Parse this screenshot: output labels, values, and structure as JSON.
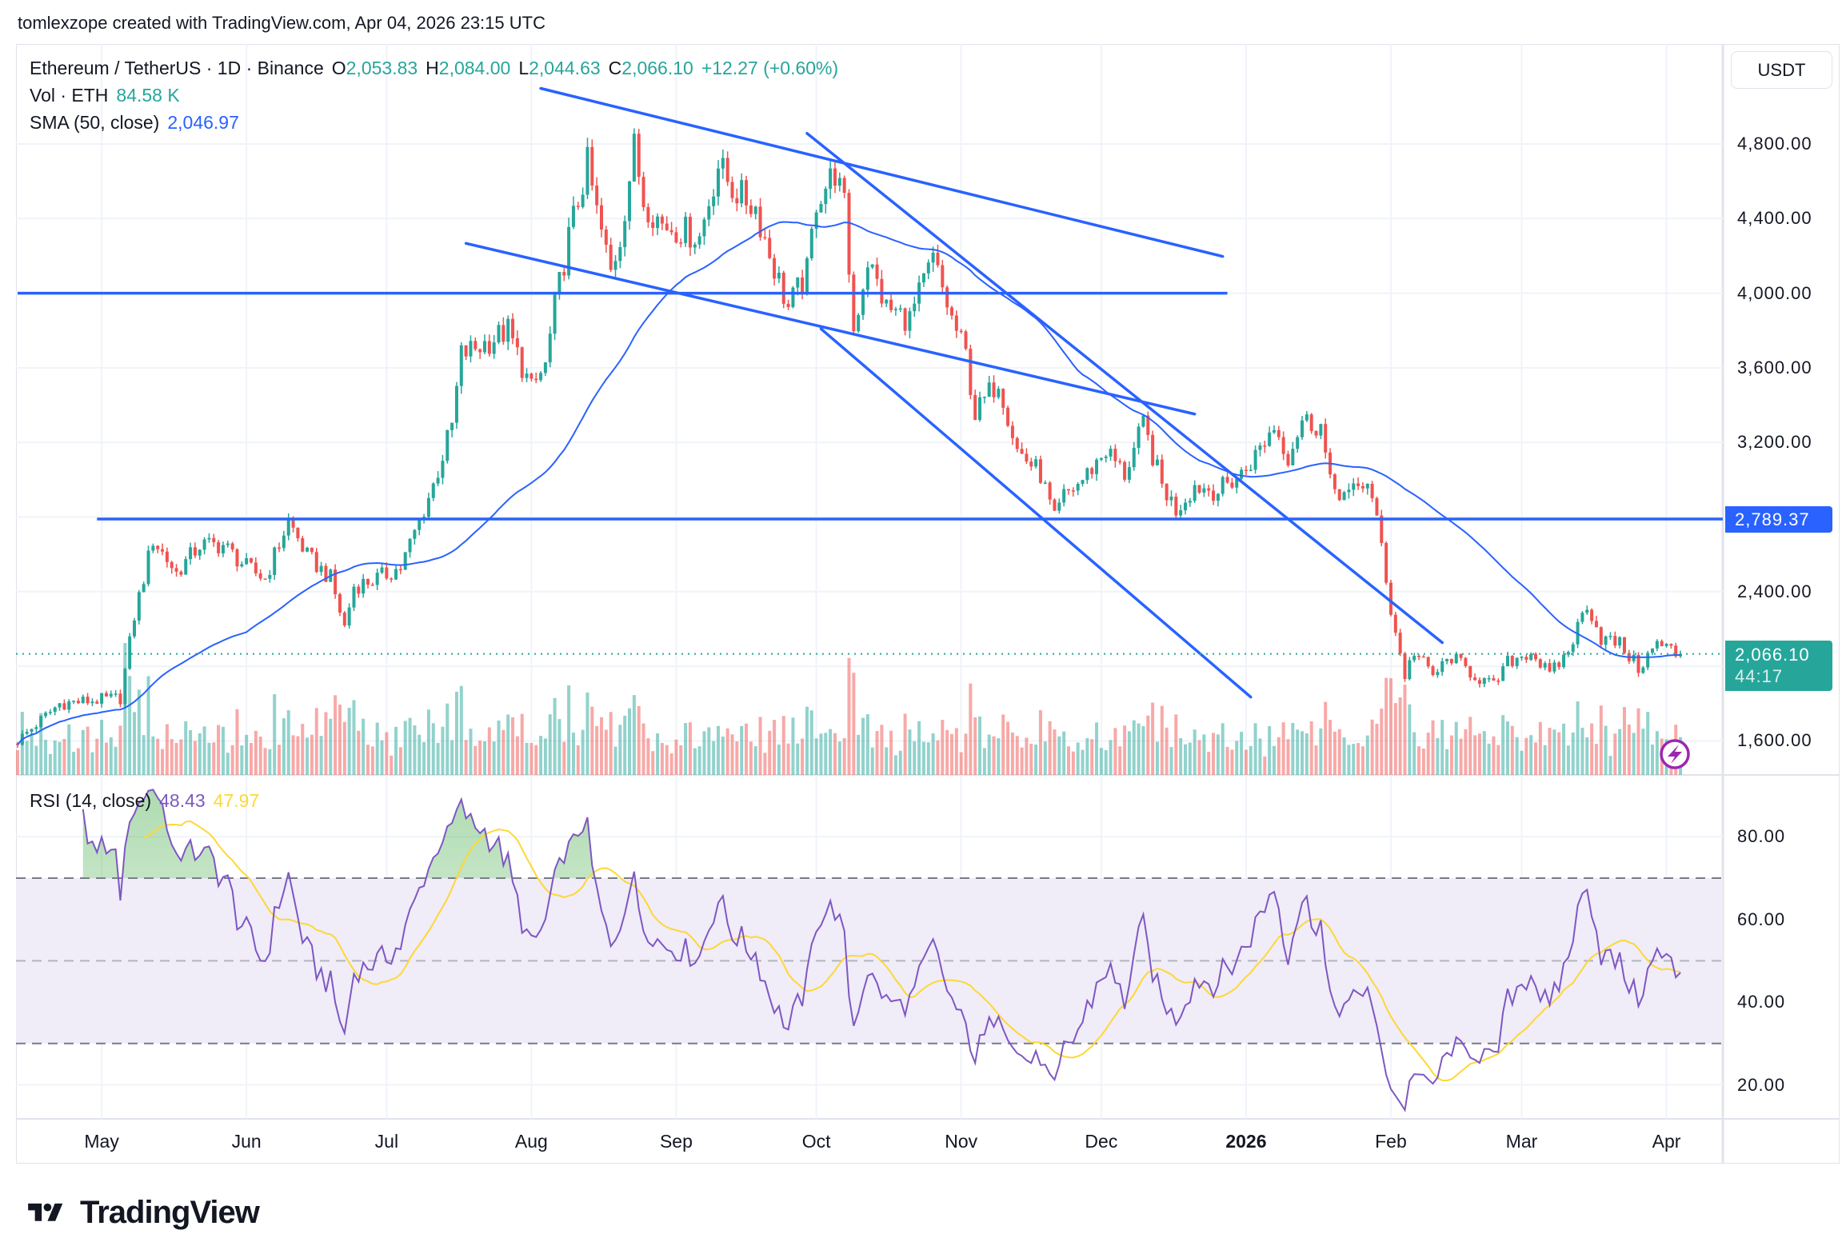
{
  "credit": "tomlexzope created with TradingView.com, Apr 04, 2026 23:15 UTC",
  "legend": {
    "symbol": "Ethereum / TetherUS · 1D · Binance",
    "o_label": "O",
    "o": "2,053.83",
    "h_label": "H",
    "h": "2,084.00",
    "l_label": "L",
    "l": "2,044.63",
    "c_label": "C",
    "c": "2,066.10",
    "change": "+12.27 (+0.60%)",
    "vol_label": "Vol · ETH",
    "vol": "84.58 K",
    "sma_label": "SMA (50, close)",
    "sma": "2,046.97",
    "rsi_label": "RSI (14, close)",
    "rsi": "48.43",
    "rsi_ma": "47.97"
  },
  "price_axis": {
    "currency": "USDT",
    "ticks": [
      "4,800.00",
      "4,400.00",
      "4,000.00",
      "3,600.00",
      "3,200.00",
      "2,400.00",
      "1,600.00"
    ],
    "hline_label": "2,789.37",
    "last_price": "2,066.10",
    "countdown": "44:17"
  },
  "rsi_axis": {
    "ticks": [
      "80.00",
      "60.00",
      "40.00",
      "20.00"
    ]
  },
  "time_axis": {
    "labels": [
      {
        "text": "May",
        "date": "2025-05-01",
        "bold": false
      },
      {
        "text": "Jun",
        "date": "2025-06-01",
        "bold": false
      },
      {
        "text": "Jul",
        "date": "2025-07-01",
        "bold": false
      },
      {
        "text": "Aug",
        "date": "2025-08-01",
        "bold": false
      },
      {
        "text": "Sep",
        "date": "2025-09-01",
        "bold": false
      },
      {
        "text": "Oct",
        "date": "2025-10-01",
        "bold": false
      },
      {
        "text": "Nov",
        "date": "2025-11-01",
        "bold": false
      },
      {
        "text": "Dec",
        "date": "2025-12-01",
        "bold": false
      },
      {
        "text": "2026",
        "date": "2026-01-01",
        "bold": true
      },
      {
        "text": "Feb",
        "date": "2026-02-01",
        "bold": false
      },
      {
        "text": "Mar",
        "date": "2026-03-01",
        "bold": false
      },
      {
        "text": "Apr",
        "date": "2026-04-01",
        "bold": false
      }
    ]
  },
  "logo": "TradingView",
  "colors": {
    "up": "#26a69a",
    "down": "#ef5350",
    "sma": "#2962ff",
    "drawing": "#2962ff",
    "rsi": "#7e57c2",
    "rsi_ma": "#fdd835",
    "rsi_band": "#f0ecf8",
    "grid": "#f0f3fa"
  },
  "chart_data": {
    "type": "candlestick",
    "symbol": "ETH/USDT",
    "interval": "1D",
    "price_range": [
      1500,
      5150
    ],
    "price_ticks": [
      1600,
      2400,
      3200,
      3600,
      4000,
      4400,
      4800
    ],
    "last_candle": {
      "date": "2026-04-04",
      "open": 2053.83,
      "high": 2084.0,
      "low": 2044.63,
      "close": 2066.1
    },
    "close_path": [
      [
        "2025-04-13",
        1600
      ],
      [
        "2025-04-22",
        1800
      ],
      [
        "2025-05-05",
        1830
      ],
      [
        "2025-05-08",
        2270
      ],
      [
        "2025-05-12",
        2680
      ],
      [
        "2025-05-17",
        2500
      ],
      [
        "2025-05-22",
        2650
      ],
      [
        "2025-05-27",
        2650
      ],
      [
        "2025-06-01",
        2530
      ],
      [
        "2025-06-05",
        2470
      ],
      [
        "2025-06-10",
        2780
      ],
      [
        "2025-06-14",
        2590
      ],
      [
        "2025-06-19",
        2470
      ],
      [
        "2025-06-22",
        2210
      ],
      [
        "2025-06-24",
        2430
      ],
      [
        "2025-06-29",
        2470
      ],
      [
        "2025-07-04",
        2530
      ],
      [
        "2025-07-08",
        2780
      ],
      [
        "2025-07-11",
        2970
      ],
      [
        "2025-07-15",
        3290
      ],
      [
        "2025-07-17",
        3670
      ],
      [
        "2025-07-22",
        3730
      ],
      [
        "2025-07-27",
        3800
      ],
      [
        "2025-08-01",
        3480
      ],
      [
        "2025-08-04",
        3610
      ],
      [
        "2025-08-06",
        3920
      ],
      [
        "2025-08-09",
        4300
      ],
      [
        "2025-08-13",
        4690
      ],
      [
        "2025-08-15",
        4430
      ],
      [
        "2025-08-18",
        4110
      ],
      [
        "2025-08-20",
        4300
      ],
      [
        "2025-08-23",
        4780
      ],
      [
        "2025-08-25",
        4500
      ],
      [
        "2025-08-29",
        4370
      ],
      [
        "2025-09-02",
        4340
      ],
      [
        "2025-09-06",
        4300
      ],
      [
        "2025-09-10",
        4690
      ],
      [
        "2025-09-13",
        4560
      ],
      [
        "2025-09-18",
        4460
      ],
      [
        "2025-09-21",
        4210
      ],
      [
        "2025-09-25",
        3920
      ],
      [
        "2025-09-29",
        4110
      ],
      [
        "2025-10-01",
        4500
      ],
      [
        "2025-10-05",
        4650
      ],
      [
        "2025-10-07",
        4460
      ],
      [
        "2025-10-09",
        3800
      ],
      [
        "2025-10-12",
        4180
      ],
      [
        "2025-10-16",
        3920
      ],
      [
        "2025-10-21",
        3860
      ],
      [
        "2025-10-26",
        4180
      ],
      [
        "2025-10-30",
        3860
      ],
      [
        "2025-11-02",
        3670
      ],
      [
        "2025-11-04",
        3350
      ],
      [
        "2025-11-09",
        3540
      ],
      [
        "2025-11-13",
        3160
      ],
      [
        "2025-11-18",
        3030
      ],
      [
        "2025-11-21",
        2780
      ],
      [
        "2025-11-23",
        2910
      ],
      [
        "2025-11-27",
        3000
      ],
      [
        "2025-12-02",
        3160
      ],
      [
        "2025-12-06",
        3030
      ],
      [
        "2025-12-10",
        3290
      ],
      [
        "2025-12-14",
        2970
      ],
      [
        "2025-12-17",
        2840
      ],
      [
        "2025-12-21",
        2970
      ],
      [
        "2025-12-26",
        2940
      ],
      [
        "2025-12-31",
        3030
      ],
      [
        "2026-01-03",
        3130
      ],
      [
        "2026-01-07",
        3290
      ],
      [
        "2026-01-10",
        3130
      ],
      [
        "2026-01-13",
        3320
      ],
      [
        "2026-01-17",
        3290
      ],
      [
        "2026-01-19",
        2970
      ],
      [
        "2026-01-23",
        2910
      ],
      [
        "2026-01-27",
        3000
      ],
      [
        "2026-01-30",
        2650
      ],
      [
        "2026-02-01",
        2300
      ],
      [
        "2026-02-04",
        1950
      ],
      [
        "2026-02-06",
        2080
      ],
      [
        "2026-02-10",
        1950
      ],
      [
        "2026-02-14",
        2050
      ],
      [
        "2026-02-19",
        1950
      ],
      [
        "2026-02-23",
        1890
      ],
      [
        "2026-02-26",
        2020
      ],
      [
        "2026-03-03",
        2080
      ],
      [
        "2026-03-07",
        1950
      ],
      [
        "2026-03-11",
        2080
      ],
      [
        "2026-03-15",
        2340
      ],
      [
        "2026-03-18",
        2150
      ],
      [
        "2026-03-22",
        2120
      ],
      [
        "2026-03-26",
        1990
      ],
      [
        "2026-03-30",
        2120
      ],
      [
        "2026-04-04",
        2066.1
      ]
    ],
    "indicators": {
      "sma": {
        "period": 50,
        "source": "close",
        "last": 2046.97
      },
      "rsi": {
        "period": 14,
        "source": "close",
        "last": 48.43,
        "ma_last": 47.97,
        "levels": [
          30,
          50,
          70
        ],
        "range": [
          10,
          90
        ],
        "ticks": [
          20,
          40,
          60,
          80
        ]
      },
      "volume": {
        "last": "84.58 K"
      }
    },
    "drawings": [
      {
        "type": "hline",
        "price": 4000,
        "from": "2025-04-13",
        "to": "2025-12-28"
      },
      {
        "type": "hline",
        "price": 2789.37,
        "from": "2025-04-30",
        "to": "extend-right"
      },
      {
        "type": "trendline",
        "p1": [
          "2025-08-03",
          5098
        ],
        "p2": [
          "2025-12-27",
          4197
        ]
      },
      {
        "type": "trendline",
        "p1": [
          "2025-07-18",
          4267
        ],
        "p2": [
          "2025-12-21",
          3352
        ]
      },
      {
        "type": "trendline",
        "p1": [
          "2025-09-29",
          4857
        ],
        "p2": [
          "2026-02-12",
          2127
        ]
      },
      {
        "type": "trendline",
        "p1": [
          "2025-10-02",
          3809
        ],
        "p2": [
          "2026-01-02",
          1835
        ]
      }
    ]
  }
}
